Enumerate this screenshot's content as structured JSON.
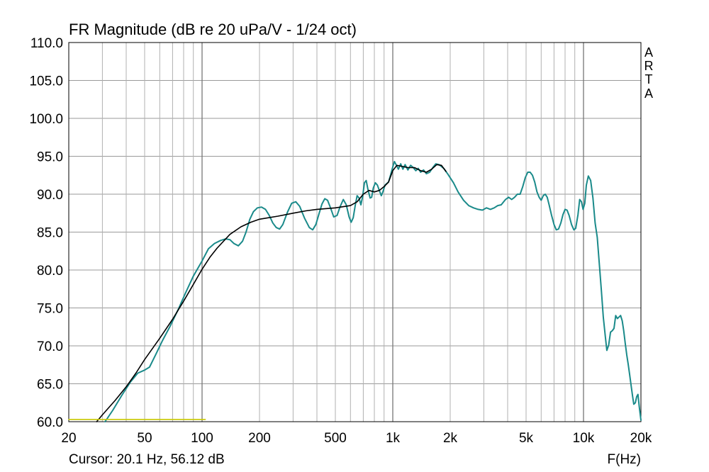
{
  "chart_data": {
    "type": "line",
    "title": "FR Magnitude (dB re 20 uPa/V - 1/24 oct)",
    "xlabel": "F(Hz)",
    "ylabel": "",
    "x_scale": "log",
    "xlim": [
      20,
      20000
    ],
    "ylim": [
      60,
      110
    ],
    "grid": true,
    "yticks": [
      110,
      105,
      100,
      95,
      90,
      85,
      80,
      75,
      70,
      65,
      60
    ],
    "ytick_labels": [
      "110.0",
      "105.0",
      "100.0",
      "95.0",
      "90.0",
      "85.0",
      "80.0",
      "75.0",
      "70.0",
      "65.0",
      "60.0"
    ],
    "xticks": [
      {
        "value": 20,
        "label": "20"
      },
      {
        "value": 50,
        "label": "50"
      },
      {
        "value": 100,
        "label": "100"
      },
      {
        "value": 200,
        "label": "200"
      },
      {
        "value": 500,
        "label": "500"
      },
      {
        "value": 1000,
        "label": "1k"
      },
      {
        "value": 2000,
        "label": "2k"
      },
      {
        "value": 5000,
        "label": "5k"
      },
      {
        "value": 10000,
        "label": "10k"
      },
      {
        "value": 20000,
        "label": "20k"
      }
    ],
    "brand": [
      "A",
      "R",
      "T",
      "A"
    ],
    "cursor_text": "Cursor: 20.1 Hz, 56.12 dB",
    "series": [
      {
        "color": "#1a8a8a",
        "points": [
          [
            31,
            60.0
          ],
          [
            34,
            61.5
          ],
          [
            38,
            63.5
          ],
          [
            42,
            65.2
          ],
          [
            46,
            66.4
          ],
          [
            50,
            66.8
          ],
          [
            53,
            67.2
          ],
          [
            57,
            68.8
          ],
          [
            62,
            70.7
          ],
          [
            68,
            72.6
          ],
          [
            75,
            74.8
          ],
          [
            82,
            77.0
          ],
          [
            90,
            79.2
          ],
          [
            100,
            81.2
          ],
          [
            108,
            82.8
          ],
          [
            116,
            83.5
          ],
          [
            125,
            83.9
          ],
          [
            133,
            84.1
          ],
          [
            140,
            84.0
          ],
          [
            147,
            83.5
          ],
          [
            155,
            83.2
          ],
          [
            163,
            83.8
          ],
          [
            170,
            85.0
          ],
          [
            178,
            86.7
          ],
          [
            186,
            87.7
          ],
          [
            195,
            88.2
          ],
          [
            205,
            88.3
          ],
          [
            215,
            88.0
          ],
          [
            225,
            87.2
          ],
          [
            235,
            86.2
          ],
          [
            245,
            85.6
          ],
          [
            255,
            85.4
          ],
          [
            265,
            86.0
          ],
          [
            280,
            87.6
          ],
          [
            295,
            88.8
          ],
          [
            310,
            89.0
          ],
          [
            325,
            88.4
          ],
          [
            345,
            86.8
          ],
          [
            365,
            85.6
          ],
          [
            380,
            85.3
          ],
          [
            395,
            86.0
          ],
          [
            410,
            87.4
          ],
          [
            425,
            88.7
          ],
          [
            440,
            89.4
          ],
          [
            455,
            89.2
          ],
          [
            470,
            88.3
          ],
          [
            490,
            87.0
          ],
          [
            510,
            87.2
          ],
          [
            530,
            88.4
          ],
          [
            550,
            89.3
          ],
          [
            570,
            88.6
          ],
          [
            590,
            87.0
          ],
          [
            605,
            86.3
          ],
          [
            620,
            86.9
          ],
          [
            635,
            88.5
          ],
          [
            650,
            89.8
          ],
          [
            665,
            89.5
          ],
          [
            680,
            88.6
          ],
          [
            695,
            89.7
          ],
          [
            710,
            91.5
          ],
          [
            725,
            91.8
          ],
          [
            740,
            90.7
          ],
          [
            760,
            89.5
          ],
          [
            775,
            89.6
          ],
          [
            790,
            90.8
          ],
          [
            810,
            91.5
          ],
          [
            830,
            91.2
          ],
          [
            850,
            90.5
          ],
          [
            870,
            89.8
          ],
          [
            890,
            90.4
          ],
          [
            910,
            91.2
          ],
          [
            930,
            91.4
          ],
          [
            950,
            91.6
          ],
          [
            970,
            92.4
          ],
          [
            1000,
            93.6
          ],
          [
            1020,
            94.3
          ],
          [
            1045,
            93.8
          ],
          [
            1070,
            93.3
          ],
          [
            1100,
            94.0
          ],
          [
            1130,
            93.3
          ],
          [
            1160,
            93.9
          ],
          [
            1200,
            93.2
          ],
          [
            1240,
            93.8
          ],
          [
            1280,
            93.5
          ],
          [
            1320,
            93.1
          ],
          [
            1360,
            93.4
          ],
          [
            1400,
            92.9
          ],
          [
            1450,
            93.2
          ],
          [
            1500,
            92.7
          ],
          [
            1560,
            92.9
          ],
          [
            1620,
            93.5
          ],
          [
            1680,
            94.0
          ],
          [
            1750,
            93.9
          ],
          [
            1850,
            93.4
          ],
          [
            1950,
            92.6
          ],
          [
            2080,
            91.5
          ],
          [
            2200,
            90.3
          ],
          [
            2350,
            89.2
          ],
          [
            2500,
            88.5
          ],
          [
            2650,
            88.2
          ],
          [
            2800,
            88.0
          ],
          [
            2950,
            87.9
          ],
          [
            3100,
            88.2
          ],
          [
            3250,
            88.0
          ],
          [
            3400,
            88.2
          ],
          [
            3550,
            88.5
          ],
          [
            3700,
            88.6
          ],
          [
            3900,
            89.3
          ],
          [
            4050,
            89.6
          ],
          [
            4200,
            89.3
          ],
          [
            4350,
            89.6
          ],
          [
            4500,
            90.0
          ],
          [
            4650,
            90.0
          ],
          [
            4800,
            91.0
          ],
          [
            4950,
            92.2
          ],
          [
            5100,
            92.9
          ],
          [
            5250,
            92.9
          ],
          [
            5400,
            92.5
          ],
          [
            5550,
            91.6
          ],
          [
            5700,
            90.3
          ],
          [
            5850,
            89.6
          ],
          [
            6000,
            89.2
          ],
          [
            6150,
            89.8
          ],
          [
            6300,
            90.0
          ],
          [
            6450,
            89.6
          ],
          [
            6600,
            88.6
          ],
          [
            6800,
            87.2
          ],
          [
            7000,
            86.0
          ],
          [
            7200,
            85.3
          ],
          [
            7400,
            85.4
          ],
          [
            7600,
            86.2
          ],
          [
            7800,
            87.3
          ],
          [
            8000,
            88.0
          ],
          [
            8200,
            87.9
          ],
          [
            8400,
            87.2
          ],
          [
            8650,
            86.0
          ],
          [
            8900,
            85.3
          ],
          [
            9100,
            85.5
          ],
          [
            9350,
            87.3
          ],
          [
            9550,
            89.3
          ],
          [
            9750,
            89.0
          ],
          [
            9950,
            88.0
          ],
          [
            10150,
            88.8
          ],
          [
            10350,
            91.2
          ],
          [
            10600,
            92.4
          ],
          [
            10900,
            91.8
          ],
          [
            11200,
            89.5
          ],
          [
            11500,
            86.2
          ],
          [
            11800,
            84.3
          ],
          [
            12100,
            80.8
          ],
          [
            12400,
            77.3
          ],
          [
            12700,
            73.8
          ],
          [
            13000,
            71.3
          ],
          [
            13250,
            69.4
          ],
          [
            13550,
            70.1
          ],
          [
            13850,
            71.8
          ],
          [
            14150,
            72.0
          ],
          [
            14450,
            72.3
          ],
          [
            14750,
            74.0
          ],
          [
            15050,
            73.6
          ],
          [
            15350,
            73.8
          ],
          [
            15650,
            74.0
          ],
          [
            15950,
            73.3
          ],
          [
            16250,
            72.0
          ],
          [
            16550,
            70.3
          ],
          [
            16850,
            68.8
          ],
          [
            17150,
            67.6
          ],
          [
            17450,
            66.2
          ],
          [
            17750,
            64.8
          ],
          [
            18050,
            63.5
          ],
          [
            18350,
            62.3
          ],
          [
            18700,
            62.5
          ],
          [
            19000,
            63.3
          ],
          [
            19300,
            63.6
          ],
          [
            19600,
            62.0
          ],
          [
            20000,
            60.2
          ]
        ]
      },
      {
        "color": "#000000",
        "points": [
          [
            28,
            60.0
          ],
          [
            30,
            60.9
          ],
          [
            35,
            62.8
          ],
          [
            40,
            64.6
          ],
          [
            45,
            66.4
          ],
          [
            50,
            68.2
          ],
          [
            60,
            71.0
          ],
          [
            70,
            73.5
          ],
          [
            80,
            75.9
          ],
          [
            90,
            78.1
          ],
          [
            100,
            80.1
          ],
          [
            110,
            81.7
          ],
          [
            120,
            82.9
          ],
          [
            140,
            84.7
          ],
          [
            160,
            85.7
          ],
          [
            180,
            86.3
          ],
          [
            200,
            86.7
          ],
          [
            250,
            87.1
          ],
          [
            300,
            87.5
          ],
          [
            350,
            87.8
          ],
          [
            400,
            88.0
          ],
          [
            500,
            88.2
          ],
          [
            600,
            88.5
          ],
          [
            650,
            89.0
          ],
          [
            700,
            90.0
          ],
          [
            750,
            90.5
          ],
          [
            800,
            90.3
          ],
          [
            850,
            90.5
          ],
          [
            900,
            91.0
          ],
          [
            950,
            91.6
          ],
          [
            1000,
            93.1
          ],
          [
            1050,
            93.8
          ],
          [
            1100,
            93.7
          ],
          [
            1200,
            93.5
          ],
          [
            1300,
            93.5
          ],
          [
            1400,
            93.1
          ],
          [
            1500,
            92.9
          ],
          [
            1600,
            93.3
          ],
          [
            1700,
            93.9
          ],
          [
            1800,
            93.8
          ],
          [
            1900,
            93.0
          ]
        ]
      },
      {
        "color": "#c8c800",
        "points": [
          [
            20,
            60.3
          ],
          [
            104,
            60.3
          ]
        ]
      }
    ]
  }
}
